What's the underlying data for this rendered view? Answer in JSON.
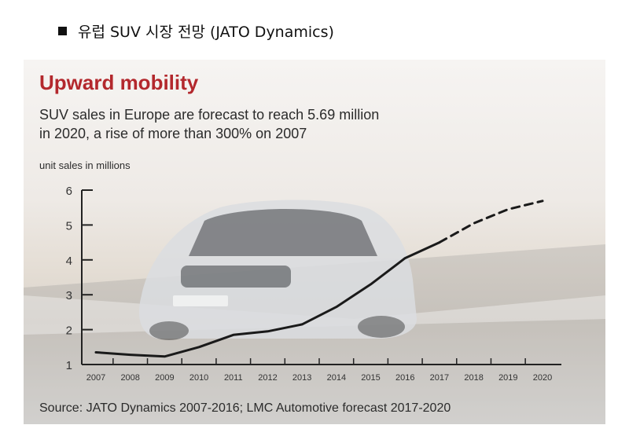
{
  "heading": {
    "text": "유럽 SUV 시장 전망 (JATO Dynamics)"
  },
  "chart_data": {
    "type": "line",
    "title": "Upward mobility",
    "subtitle_lines": [
      "SUV sales in Europe are forecast to reach 5.69 million",
      "in 2020, a rise of more than 300% on 2007"
    ],
    "ylabel": "unit sales in millions",
    "xlabel": "",
    "source": "Source: JATO Dynamics 2007-2016; LMC Automotive forecast 2017-2020",
    "categories": [
      "2007",
      "2008",
      "2009",
      "2010",
      "2011",
      "2012",
      "2013",
      "2014",
      "2015",
      "2016",
      "2017",
      "2018",
      "2019",
      "2020"
    ],
    "ylim": [
      1,
      6
    ],
    "yticks": [
      1,
      2,
      3,
      4,
      5,
      6
    ],
    "grid": false,
    "series": [
      {
        "name": "",
        "segment": "actual",
        "style": "solid",
        "x": [
          "2007",
          "2008",
          "2009",
          "2010",
          "2011",
          "2012",
          "2013",
          "2014",
          "2015",
          "2016",
          "2017"
        ],
        "values": [
          1.35,
          1.28,
          1.23,
          1.5,
          1.85,
          1.95,
          2.15,
          2.65,
          3.3,
          4.05,
          4.5
        ]
      },
      {
        "name": "",
        "segment": "forecast",
        "style": "dashed",
        "x": [
          "2017",
          "2018",
          "2019",
          "2020"
        ],
        "values": [
          4.5,
          5.05,
          5.45,
          5.69
        ]
      }
    ],
    "colors": {
      "title": "#b3282d",
      "line": "#1a1a1a",
      "text": "#2b2b2b"
    }
  }
}
